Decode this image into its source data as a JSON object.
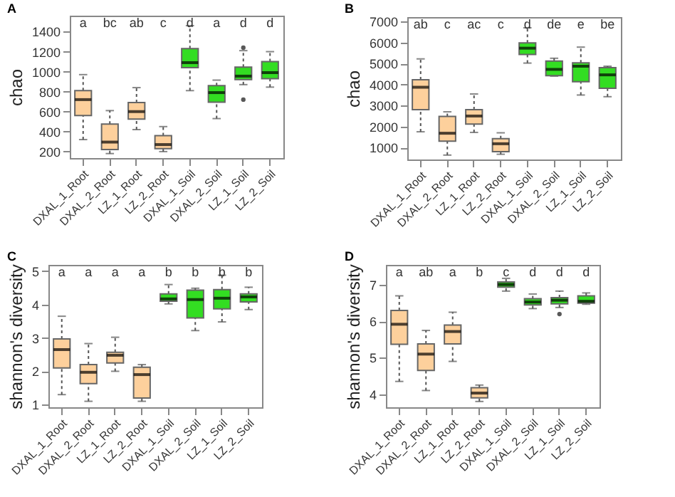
{
  "chart_data": [
    {
      "type": "box",
      "title": "A",
      "ylabel": "chao",
      "categories": [
        "DXAL_1_Root",
        "DXAL_2_Root",
        "LZ_1_Root",
        "LZ_2_Root",
        "DXAL_1_Soil",
        "DXAL_2_Soil",
        "LZ_1_Soil",
        "LZ_2_Soil"
      ],
      "colors": [
        "#fdd09c",
        "#fdd09c",
        "#fdd09c",
        "#fdd09c",
        "#33dd22",
        "#33dd22",
        "#33dd22",
        "#33dd22"
      ],
      "boxes": [
        {
          "low": 320,
          "q1": 560,
          "median": 720,
          "q3": 810,
          "high": 970
        },
        {
          "low": 180,
          "q1": 220,
          "median": 295,
          "q3": 475,
          "high": 610
        },
        {
          "low": 420,
          "q1": 525,
          "median": 600,
          "q3": 690,
          "high": 840
        },
        {
          "low": 200,
          "q1": 230,
          "median": 270,
          "q3": 360,
          "high": 450
        },
        {
          "low": 810,
          "q1": 1040,
          "median": 1090,
          "q3": 1230,
          "high": 1460
        },
        {
          "low": 530,
          "q1": 695,
          "median": 790,
          "q3": 860,
          "high": 915
        },
        {
          "low": 870,
          "q1": 920,
          "median": 955,
          "q3": 1045,
          "high": 1210,
          "outliers": [
            720,
            1240
          ]
        },
        {
          "low": 845,
          "q1": 930,
          "median": 990,
          "q3": 1100,
          "high": 1200
        }
      ],
      "ylim": [
        135,
        1560
      ],
      "yticks": [
        200,
        400,
        600,
        800,
        1000,
        1200,
        1400
      ],
      "grid": false,
      "annotations": [
        "a",
        "bc",
        "ab",
        "c",
        "d",
        "a",
        "d",
        "d"
      ]
    },
    {
      "type": "box",
      "title": "B",
      "ylabel": "chao",
      "categories": [
        "DXAL_1_Root",
        "DXAL_2_Root",
        "LZ_1_Root",
        "LZ_2_Root",
        "DXAL_1_Soil",
        "DXAL_2_Soil",
        "LZ_1_Soil",
        "LZ_2_Soil"
      ],
      "colors": [
        "#fdd09c",
        "#fdd09c",
        "#fdd09c",
        "#fdd09c",
        "#33dd22",
        "#33dd22",
        "#33dd22",
        "#33dd22"
      ],
      "boxes": [
        {
          "low": 1750,
          "q1": 2800,
          "median": 3870,
          "q3": 4230,
          "high": 5220
        },
        {
          "low": 640,
          "q1": 1300,
          "median": 1680,
          "q3": 2480,
          "high": 2700
        },
        {
          "low": 1720,
          "q1": 2120,
          "median": 2500,
          "q3": 2800,
          "high": 3550
        },
        {
          "low": 680,
          "q1": 800,
          "median": 1180,
          "q3": 1420,
          "high": 1700
        },
        {
          "low": 5020,
          "q1": 5430,
          "median": 5730,
          "q3": 5980,
          "high": 6700
        },
        {
          "low": 4400,
          "q1": 4420,
          "median": 4720,
          "q3": 5120,
          "high": 5250
        },
        {
          "low": 3500,
          "q1": 4130,
          "median": 4870,
          "q3": 5030,
          "high": 5780
        },
        {
          "low": 3420,
          "q1": 3820,
          "median": 4460,
          "q3": 4800,
          "high": 4870
        }
      ],
      "ylim": [
        430,
        7210
      ],
      "yticks": [
        1000,
        2000,
        3000,
        4000,
        5000,
        6000,
        7000
      ],
      "grid": false,
      "annotations": [
        "ab",
        "c",
        "ac",
        "c",
        "d",
        "de",
        "e",
        "be"
      ]
    },
    {
      "type": "box",
      "title": "C",
      "ylabel": "shannon's diversity",
      "categories": [
        "DXAL_1_Root",
        "DXAL_2_Root",
        "LZ_1_Root",
        "LZ_2_Root",
        "DXAL_1_Soil",
        "DXAL_2_Soil",
        "LZ_1_Soil",
        "LZ_2_Soil"
      ],
      "colors": [
        "#fdd09c",
        "#fdd09c",
        "#fdd09c",
        "#fdd09c",
        "#33dd22",
        "#33dd22",
        "#33dd22",
        "#33dd22"
      ],
      "boxes": [
        {
          "low": 1.3,
          "q1": 2.1,
          "median": 2.65,
          "q3": 2.97,
          "high": 3.65
        },
        {
          "low": 1.1,
          "q1": 1.63,
          "median": 1.97,
          "q3": 2.2,
          "high": 2.83
        },
        {
          "low": 2.0,
          "q1": 2.25,
          "median": 2.48,
          "q3": 2.57,
          "high": 3.02
        },
        {
          "low": 1.1,
          "q1": 1.2,
          "median": 1.9,
          "q3": 2.12,
          "high": 2.2
        },
        {
          "low": 4.02,
          "q1": 4.1,
          "median": 4.17,
          "q3": 4.32,
          "high": 4.6
        },
        {
          "low": 3.22,
          "q1": 3.6,
          "median": 4.15,
          "q3": 4.43,
          "high": 4.49
        },
        {
          "low": 3.48,
          "q1": 3.87,
          "median": 4.19,
          "q3": 4.45,
          "high": 4.88
        },
        {
          "low": 3.85,
          "q1": 4.08,
          "median": 4.23,
          "q3": 4.32,
          "high": 4.52
        }
      ],
      "ylim": [
        0.92,
        5.19
      ],
      "yticks": [
        1,
        2,
        3,
        4,
        5
      ],
      "grid": false,
      "annotations": [
        "a",
        "a",
        "a",
        "a",
        "b",
        "b",
        "b",
        "b"
      ]
    },
    {
      "type": "box",
      "title": "D",
      "ylabel": "shannon's diversity",
      "categories": [
        "DXAL_1_Root",
        "DXAL_2_Root",
        "LZ_1_Root",
        "LZ_2_Root",
        "DXAL_1_Soil",
        "DXAL_2_Soil",
        "LZ_1_Soil",
        "LZ_2_Soil"
      ],
      "colors": [
        "#fdd09c",
        "#fdd09c",
        "#fdd09c",
        "#fdd09c",
        "#33dd22",
        "#33dd22",
        "#33dd22",
        "#33dd22"
      ],
      "boxes": [
        {
          "low": 4.35,
          "q1": 5.37,
          "median": 5.92,
          "q3": 6.3,
          "high": 6.7
        },
        {
          "low": 4.1,
          "q1": 4.65,
          "median": 5.1,
          "q3": 5.38,
          "high": 5.75
        },
        {
          "low": 4.9,
          "q1": 5.38,
          "median": 5.72,
          "q3": 5.9,
          "high": 6.25
        },
        {
          "low": 3.8,
          "q1": 3.9,
          "median": 4.03,
          "q3": 4.18,
          "high": 4.25
        },
        {
          "low": 6.83,
          "q1": 6.94,
          "median": 7.01,
          "q3": 7.08,
          "high": 7.18
        },
        {
          "low": 6.35,
          "q1": 6.45,
          "median": 6.53,
          "q3": 6.62,
          "high": 6.75
        },
        {
          "low": 6.38,
          "q1": 6.48,
          "median": 6.58,
          "q3": 6.65,
          "high": 6.83,
          "outliers": [
            6.2
          ]
        },
        {
          "low": 6.47,
          "q1": 6.5,
          "median": 6.55,
          "q3": 6.7,
          "high": 6.78
        }
      ],
      "ylim": [
        3.64,
        7.55
      ],
      "yticks": [
        4,
        5,
        6,
        7
      ],
      "grid": false,
      "annotations": [
        "a",
        "ab",
        "a",
        "b",
        "c",
        "d",
        "d",
        "d"
      ]
    }
  ]
}
